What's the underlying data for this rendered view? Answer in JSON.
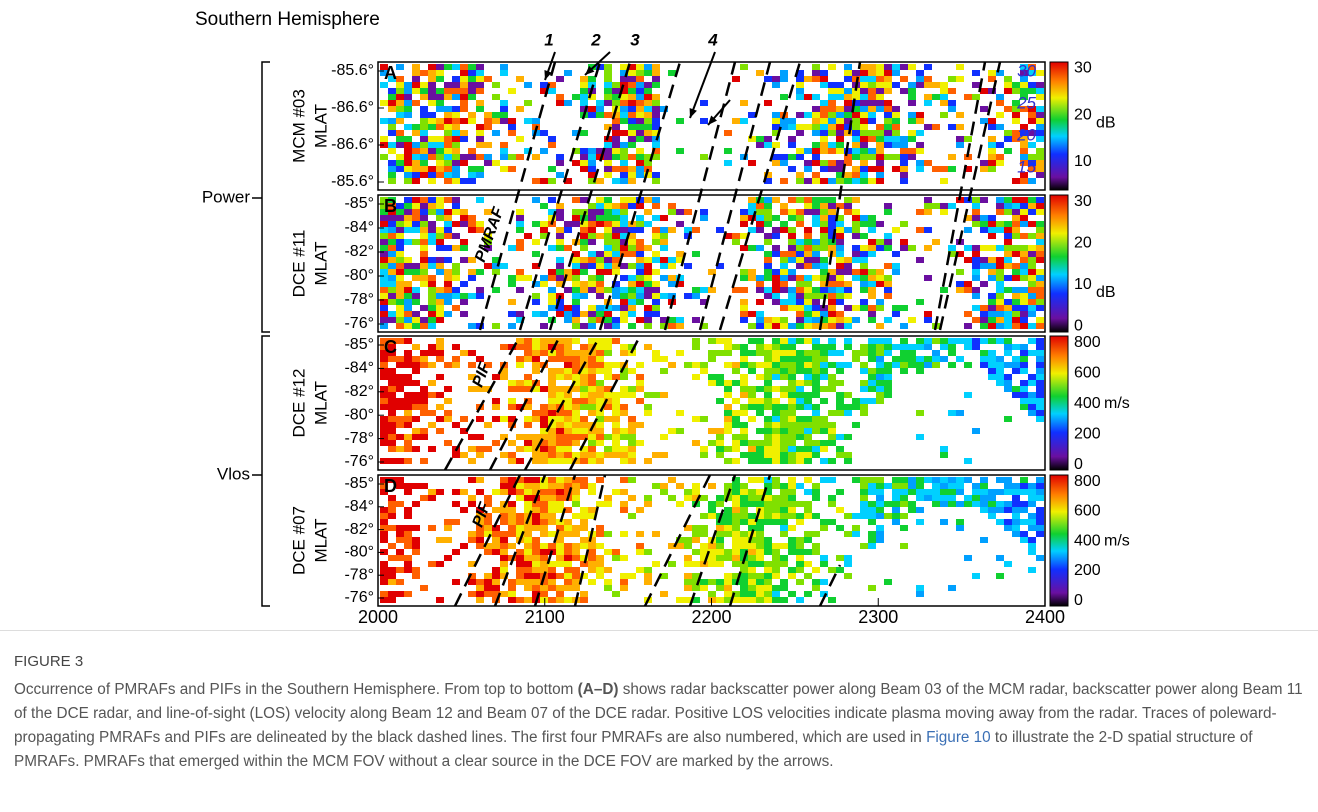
{
  "figure": {
    "hemisphere": "Southern Hemisphere",
    "groups": [
      "Power",
      "Vlos"
    ],
    "panels": [
      {
        "letter": "A",
        "ylabel": [
          "MCM #03",
          "MLAT"
        ],
        "yticks": [
          "-85.6°",
          "-86.6°",
          "-86.6°",
          "-85.6°"
        ],
        "cbar_ticks": [
          "10",
          "20",
          "30"
        ],
        "cbar_unit": "dB",
        "overlay_ticks": [
          "30",
          "25",
          "20",
          "15"
        ]
      },
      {
        "letter": "B",
        "ylabel": [
          "DCE #11",
          "MLAT"
        ],
        "yticks": [
          "-85°",
          "-84°",
          "-82°",
          "-80°",
          "-78°",
          "-76°"
        ],
        "cbar_ticks": [
          "0",
          "10",
          "20",
          "30"
        ],
        "cbar_unit": "dB"
      },
      {
        "letter": "C",
        "ylabel": [
          "DCE #12",
          "MLAT"
        ],
        "yticks": [
          "-85°",
          "-84°",
          "-82°",
          "-80°",
          "-78°",
          "-76°"
        ],
        "cbar_ticks": [
          "0",
          "200",
          "400",
          "600",
          "800"
        ],
        "cbar_unit": "m/s"
      },
      {
        "letter": "D",
        "ylabel": [
          "DCE #07",
          "MLAT"
        ],
        "yticks": [
          "-85°",
          "-84°",
          "-82°",
          "-80°",
          "-78°",
          "-76°"
        ],
        "cbar_ticks": [
          "0",
          "200",
          "400",
          "600",
          "800"
        ],
        "cbar_unit": "m/s"
      }
    ],
    "xticks": [
      "2000",
      "2100",
      "2200",
      "2300",
      "2400"
    ],
    "numbers": [
      "1",
      "2",
      "3",
      "4"
    ],
    "trace_labels": [
      "PMRAF",
      "PIF",
      "PIF"
    ]
  },
  "caption": {
    "label": "FIGURE 3",
    "parts": [
      "Occurrence of PMRAFs and PIFs in the Southern Hemisphere. From top to bottom ",
      "(A–D)",
      " shows radar backscatter power along Beam 03 of the MCM radar, backscatter power along Beam 11 of the DCE radar, and line-of-sight (LOS) velocity along Beam 12 and Beam 07 of the DCE radar. Positive LOS velocities indicate plasma moving away from the radar. Traces of poleward-propagating PMRAFs and PIFs are delineated by the black dashed lines. The first four PMRAFs are also numbered, which are used in ",
      "Figure 10",
      " to illustrate the 2-D spatial structure of PMRAFs. PMRAFs that emerged within the MCM FOV without a clear source in the DCE FOV are marked by the arrows."
    ]
  }
}
